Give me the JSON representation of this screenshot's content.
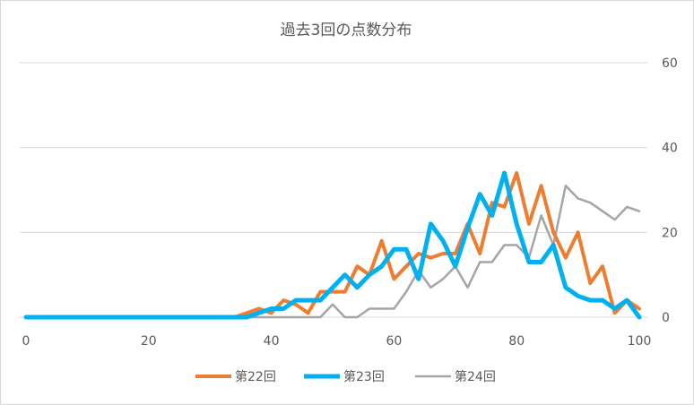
{
  "chart_data": {
    "type": "line",
    "title": "過去3回の点数分布",
    "xlabel": "",
    "ylabel": "",
    "xlim": [
      0,
      100
    ],
    "ylim": [
      0,
      60
    ],
    "x_ticks": [
      "0",
      "20",
      "40",
      "60",
      "80",
      "100"
    ],
    "y_ticks": [
      "0",
      "20",
      "40",
      "60"
    ],
    "y_axis_side": "right",
    "grid": true,
    "legend_position": "bottom",
    "series": [
      {
        "name": "第22回",
        "color": "#ED7D31",
        "x": [
          0,
          2,
          4,
          6,
          8,
          10,
          12,
          14,
          16,
          18,
          20,
          22,
          24,
          26,
          28,
          30,
          32,
          34,
          36,
          38,
          40,
          42,
          44,
          46,
          48,
          50,
          52,
          54,
          56,
          58,
          60,
          62,
          64,
          66,
          68,
          70,
          72,
          74,
          76,
          78,
          80,
          82,
          84,
          86,
          88,
          90,
          92,
          94,
          96,
          98,
          100
        ],
        "values": [
          0,
          0,
          0,
          0,
          0,
          0,
          0,
          0,
          0,
          0,
          0,
          0,
          0,
          0,
          0,
          0,
          0,
          0,
          1,
          2,
          1,
          4,
          3,
          1,
          6,
          6,
          6,
          12,
          10,
          18,
          9,
          12,
          15,
          14,
          15,
          15,
          22,
          15,
          27,
          26,
          34,
          22,
          31,
          20,
          14,
          20,
          8,
          12,
          1,
          4,
          2
        ]
      },
      {
        "name": "第23回",
        "color": "#00B0F0",
        "x": [
          0,
          2,
          4,
          6,
          8,
          10,
          12,
          14,
          16,
          18,
          20,
          22,
          24,
          26,
          28,
          30,
          32,
          34,
          36,
          38,
          40,
          42,
          44,
          46,
          48,
          50,
          52,
          54,
          56,
          58,
          60,
          62,
          64,
          66,
          68,
          70,
          72,
          74,
          76,
          78,
          80,
          82,
          84,
          86,
          88,
          90,
          92,
          94,
          96,
          98,
          100
        ],
        "values": [
          0,
          0,
          0,
          0,
          0,
          0,
          0,
          0,
          0,
          0,
          0,
          0,
          0,
          0,
          0,
          0,
          0,
          0,
          0,
          1,
          2,
          2,
          4,
          4,
          4,
          7,
          10,
          7,
          10,
          12,
          16,
          16,
          9,
          22,
          18,
          12,
          21,
          29,
          24,
          34,
          22,
          13,
          13,
          17,
          7,
          5,
          4,
          4,
          2,
          4,
          0
        ]
      },
      {
        "name": "第24回",
        "color": "#A5A5A5",
        "x": [
          0,
          2,
          4,
          6,
          8,
          10,
          12,
          14,
          16,
          18,
          20,
          22,
          24,
          26,
          28,
          30,
          32,
          34,
          36,
          38,
          40,
          42,
          44,
          46,
          48,
          50,
          52,
          54,
          56,
          58,
          60,
          62,
          64,
          66,
          68,
          70,
          72,
          74,
          76,
          78,
          80,
          82,
          84,
          86,
          88,
          90,
          92,
          94,
          96,
          98,
          100
        ],
        "values": [
          0,
          0,
          0,
          0,
          0,
          0,
          0,
          0,
          0,
          0,
          0,
          0,
          0,
          0,
          0,
          0,
          0,
          0,
          0,
          0,
          0,
          0,
          0,
          0,
          0,
          3,
          0,
          0,
          2,
          2,
          2,
          6,
          11,
          7,
          9,
          12,
          7,
          13,
          13,
          17,
          17,
          14,
          24,
          17,
          31,
          28,
          27,
          25,
          23,
          26,
          25
        ]
      }
    ]
  }
}
